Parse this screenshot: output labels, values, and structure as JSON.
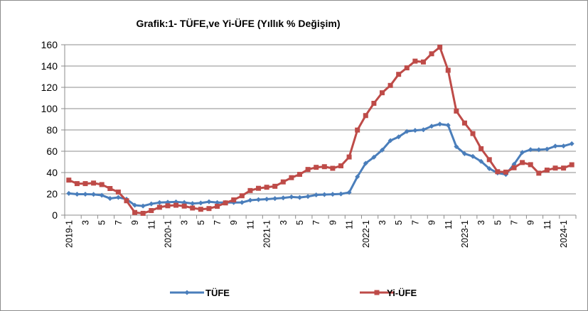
{
  "chart_data": {
    "type": "line",
    "title": "Grafik:1- TÜFE,ve Yi-ÜFE  (Yıllık % Değişim)",
    "xlabel": "",
    "ylabel": "",
    "ylim": [
      0,
      160
    ],
    "y_ticks": [
      "0",
      "20",
      "40",
      "60",
      "80",
      "100",
      "120",
      "140",
      "160"
    ],
    "x_tick_labels": [
      "2019-1",
      "3",
      "5",
      "7",
      "9",
      "11",
      "2020-1",
      "3",
      "5",
      "7",
      "9",
      "11",
      "2021-1",
      "3",
      "5",
      "7",
      "9",
      "11",
      "2022-1",
      "3",
      "5",
      "7",
      "9",
      "11",
      "2023-1",
      "3",
      "5",
      "7",
      "9",
      "11",
      "2024-1"
    ],
    "legend_position": "bottom",
    "grid": "horizontal",
    "x": [
      "2019-1",
      "2019-2",
      "2019-3",
      "2019-4",
      "2019-5",
      "2019-6",
      "2019-7",
      "2019-8",
      "2019-9",
      "2019-10",
      "2019-11",
      "2019-12",
      "2020-1",
      "2020-2",
      "2020-3",
      "2020-4",
      "2020-5",
      "2020-6",
      "2020-7",
      "2020-8",
      "2020-9",
      "2020-10",
      "2020-11",
      "2020-12",
      "2021-1",
      "2021-2",
      "2021-3",
      "2021-4",
      "2021-5",
      "2021-6",
      "2021-7",
      "2021-8",
      "2021-9",
      "2021-10",
      "2021-11",
      "2021-12",
      "2022-1",
      "2022-2",
      "2022-3",
      "2022-4",
      "2022-5",
      "2022-6",
      "2022-7",
      "2022-8",
      "2022-9",
      "2022-10",
      "2022-11",
      "2022-12",
      "2023-1",
      "2023-2",
      "2023-3",
      "2023-4",
      "2023-5",
      "2023-6",
      "2023-7",
      "2023-8",
      "2023-9",
      "2023-10",
      "2023-11",
      "2023-12",
      "2024-1",
      "2024-2"
    ],
    "series": [
      {
        "name": "TÜFE",
        "color": "#4a7ebb",
        "marker": "diamond",
        "values": [
          20.4,
          19.7,
          19.7,
          19.5,
          18.7,
          15.7,
          16.7,
          15.0,
          9.3,
          8.6,
          10.6,
          11.8,
          12.2,
          12.4,
          11.9,
          10.9,
          11.4,
          12.6,
          11.8,
          11.8,
          11.8,
          11.9,
          14.0,
          14.6,
          15.0,
          15.6,
          16.2,
          17.1,
          16.6,
          17.5,
          19.0,
          19.3,
          19.6,
          19.9,
          21.3,
          36.1,
          48.7,
          54.4,
          61.1,
          70.0,
          73.5,
          78.6,
          79.6,
          80.2,
          83.5,
          85.5,
          84.4,
          64.3,
          57.7,
          55.2,
          50.5,
          43.7,
          39.6,
          38.2,
          47.8,
          58.9,
          61.5,
          61.4,
          62.0,
          64.8,
          64.9,
          67.1
        ]
      },
      {
        "name": "Yi-ÜFE",
        "color": "#be4b48",
        "marker": "square",
        "values": [
          32.9,
          29.6,
          29.6,
          30.1,
          28.7,
          25.0,
          21.7,
          13.5,
          2.5,
          1.7,
          4.3,
          7.4,
          8.8,
          9.3,
          8.5,
          6.7,
          5.5,
          6.2,
          8.3,
          11.5,
          14.3,
          18.2,
          23.1,
          25.2,
          26.2,
          27.1,
          31.2,
          35.2,
          38.3,
          42.9,
          44.9,
          45.5,
          44.0,
          46.3,
          54.6,
          79.9,
          93.5,
          105.0,
          114.9,
          121.8,
          132.2,
          138.3,
          144.6,
          143.8,
          151.5,
          157.7,
          136.0,
          97.7,
          86.5,
          76.6,
          62.4,
          52.1,
          40.8,
          40.4,
          44.5,
          49.4,
          47.4,
          39.4,
          42.3,
          44.2,
          44.2,
          47.3
        ]
      }
    ]
  }
}
